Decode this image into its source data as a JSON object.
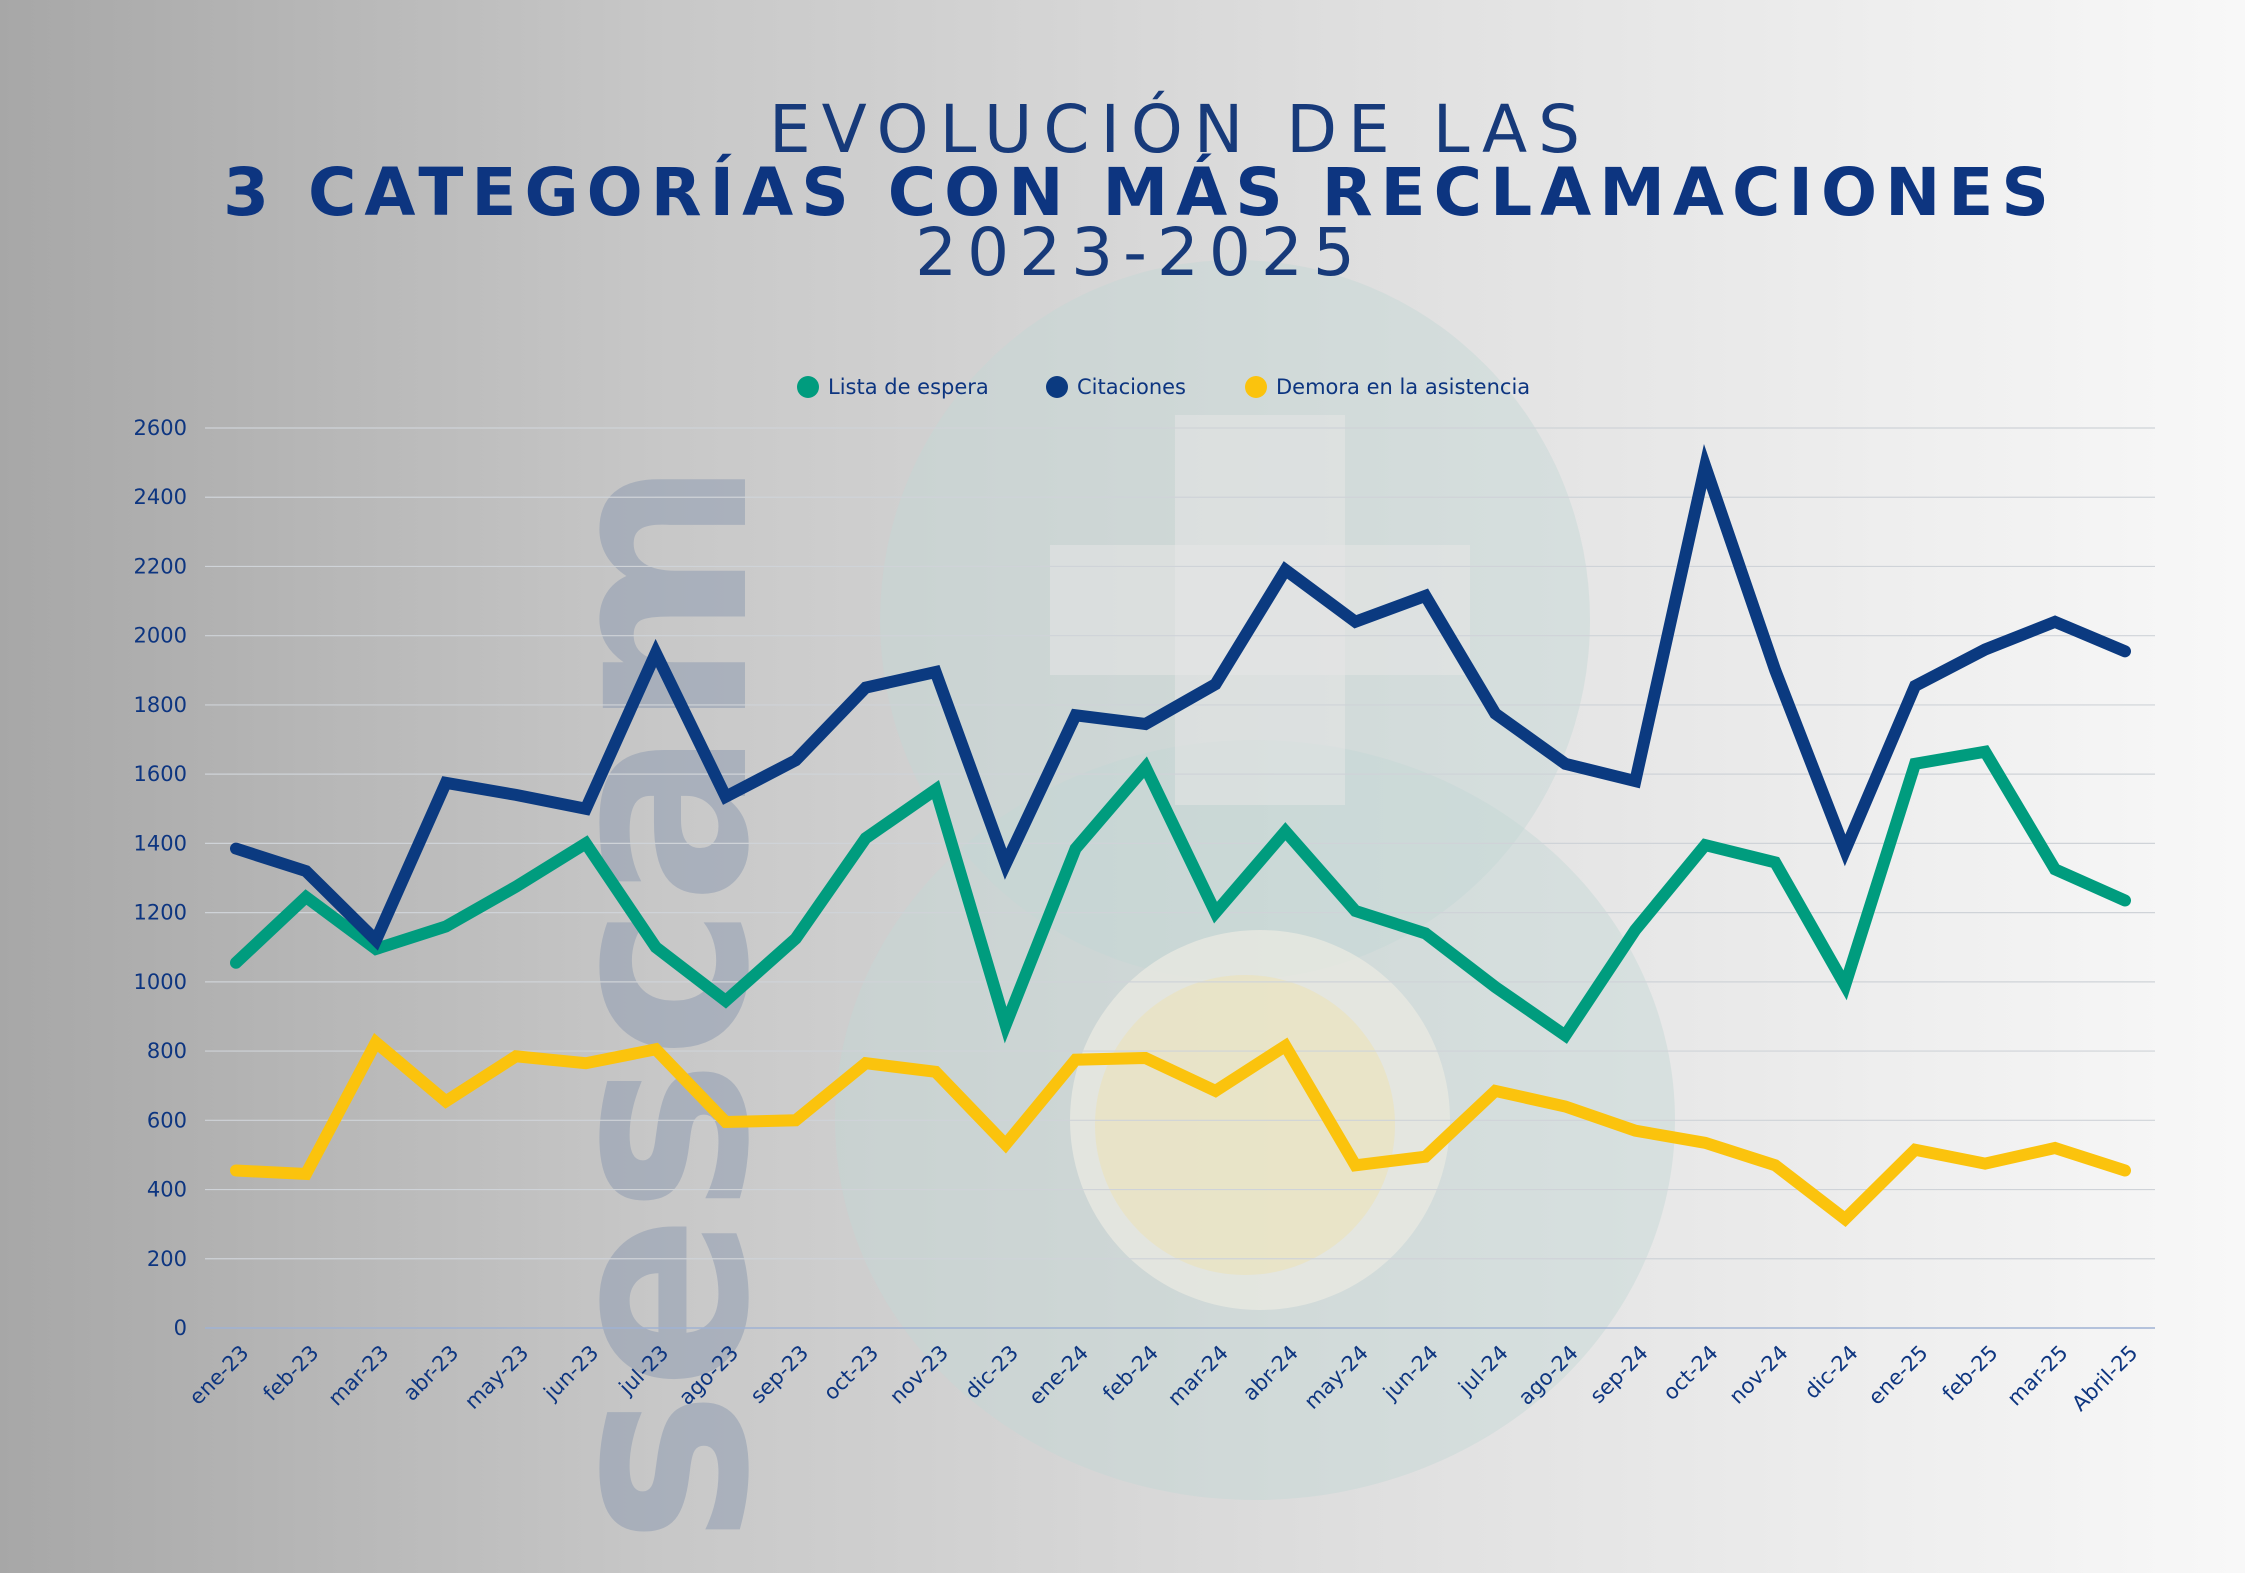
{
  "title": {
    "line1": "EVOLUCIÓN DE LAS",
    "line2": "3 CATEGORÍAS CON MÁS RECLAMACIONES",
    "line3": "2023-2025"
  },
  "watermark": {
    "text": "sescam"
  },
  "colors": {
    "lista": "#009c7e",
    "citaciones": "#0b3a80",
    "demora": "#fbc30d",
    "text": "#0d3580"
  },
  "chart_data": {
    "type": "line",
    "title": "EVOLUCIÓN DE LAS 3 CATEGORÍAS CON MÁS RECLAMACIONES 2023-2025",
    "categories": [
      "ene-23",
      "feb-23",
      "mar-23",
      "abr-23",
      "may-23",
      "jun-23",
      "jul-23",
      "ago-23",
      "sep-23",
      "oct-23",
      "nov-23",
      "dic-23",
      "ene-24",
      "feb-24",
      "mar-24",
      "abr-24",
      "may-24",
      "jun-24",
      "jul-24",
      "ago-24",
      "sep-24",
      "oct-24",
      "nov-24",
      "dic-24",
      "ene-25",
      "feb-25",
      "mar-25",
      "Abril-25"
    ],
    "series": [
      {
        "name": "Lista de espera",
        "color": "#009c7e",
        "values": [
          1055,
          1245,
          1095,
          1160,
          1275,
          1400,
          1100,
          945,
          1125,
          1415,
          1555,
          875,
          1385,
          1620,
          1200,
          1435,
          1205,
          1140,
          985,
          845,
          1150,
          1395,
          1345,
          990,
          1630,
          1665,
          1325,
          1235
        ]
      },
      {
        "name": "Citaciones",
        "color": "#0b3a80",
        "values": [
          1385,
          1320,
          1120,
          1575,
          1540,
          1500,
          1950,
          1535,
          1640,
          1850,
          1895,
          1340,
          1770,
          1745,
          1860,
          2190,
          2040,
          2115,
          1775,
          1630,
          1580,
          2490,
          1900,
          1380,
          1855,
          1960,
          2040,
          1955
        ]
      },
      {
        "name": "Demora en la asistencia",
        "color": "#fbc30d",
        "values": [
          455,
          445,
          825,
          655,
          785,
          765,
          805,
          595,
          600,
          765,
          740,
          530,
          775,
          780,
          685,
          815,
          470,
          495,
          685,
          640,
          570,
          535,
          470,
          315,
          515,
          475,
          520,
          455
        ]
      }
    ],
    "ylim": [
      0,
      2600
    ],
    "yticks": [
      0,
      200,
      400,
      600,
      800,
      1000,
      1200,
      1400,
      1600,
      1800,
      2000,
      2200,
      2400,
      2600
    ],
    "grid": true,
    "legend_position": "top-center"
  }
}
